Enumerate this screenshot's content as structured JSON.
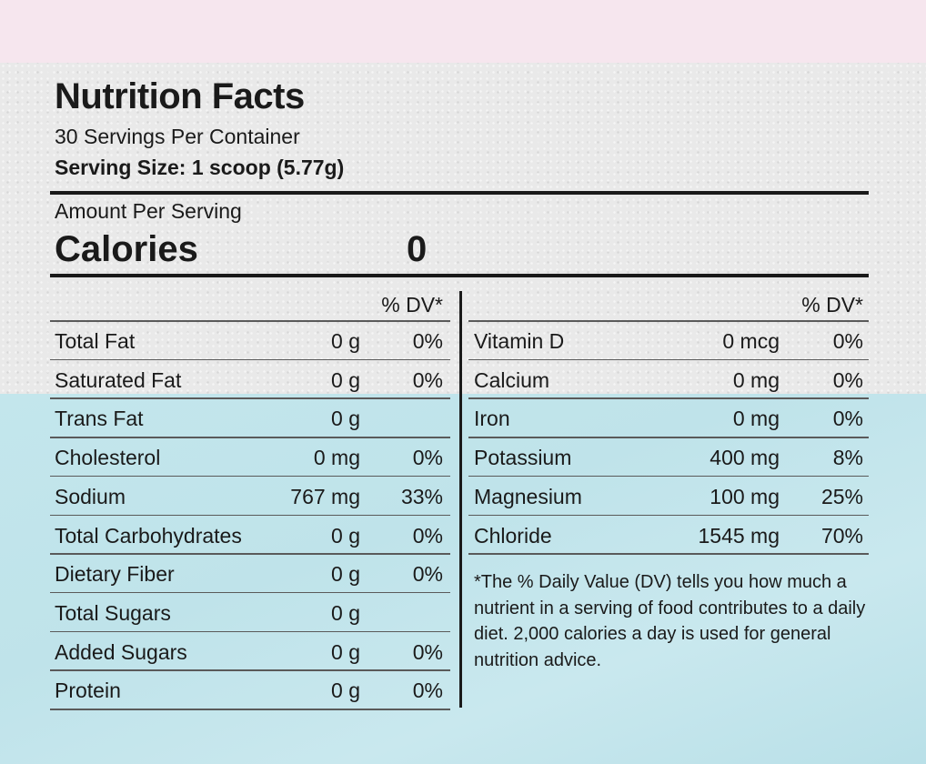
{
  "label": {
    "title": "Nutrition Facts",
    "servings_per_container": "30 Servings Per Container",
    "serving_size": "Serving Size: 1 scoop (5.77g)",
    "amount_per_serving": "Amount Per Serving",
    "calories_label": "Calories",
    "calories_value": "0",
    "dv_header": "% DV*"
  },
  "left_rows": [
    {
      "name": "Total Fat",
      "amount": "0 g",
      "dv": "0%"
    },
    {
      "name": "Saturated Fat",
      "amount": "0 g",
      "dv": "0%"
    },
    {
      "name": "Trans Fat",
      "amount": "0 g",
      "dv": ""
    },
    {
      "name": "Cholesterol",
      "amount": "0 mg",
      "dv": "0%"
    },
    {
      "name": "Sodium",
      "amount": "767 mg",
      "dv": "33%"
    },
    {
      "name": "Total Carbohydrates",
      "amount": "0 g",
      "dv": "0%"
    },
    {
      "name": "Dietary Fiber",
      "amount": "0 g",
      "dv": "0%"
    },
    {
      "name": "Total Sugars",
      "amount": "0 g",
      "dv": ""
    },
    {
      "name": "Added Sugars",
      "amount": "0 g",
      "dv": "0%"
    },
    {
      "name": "Protein",
      "amount": "0 g",
      "dv": "0%"
    }
  ],
  "right_rows": [
    {
      "name": "Vitamin D",
      "amount": "0 mcg",
      "dv": "0%"
    },
    {
      "name": "Calcium",
      "amount": "0 mg",
      "dv": "0%"
    },
    {
      "name": "Iron",
      "amount": "0 mg",
      "dv": "0%"
    },
    {
      "name": "Potassium",
      "amount": "400 mg",
      "dv": "8%"
    },
    {
      "name": "Magnesium",
      "amount": "100 mg",
      "dv": "25%"
    },
    {
      "name": "Chloride",
      "amount": "1545 mg",
      "dv": "70%"
    }
  ],
  "footnote": "*The % Daily Value (DV) tells you how much a nutrient in a serving of food contributes to a daily diet. 2,000 calories a day is used for general nutrition advice."
}
